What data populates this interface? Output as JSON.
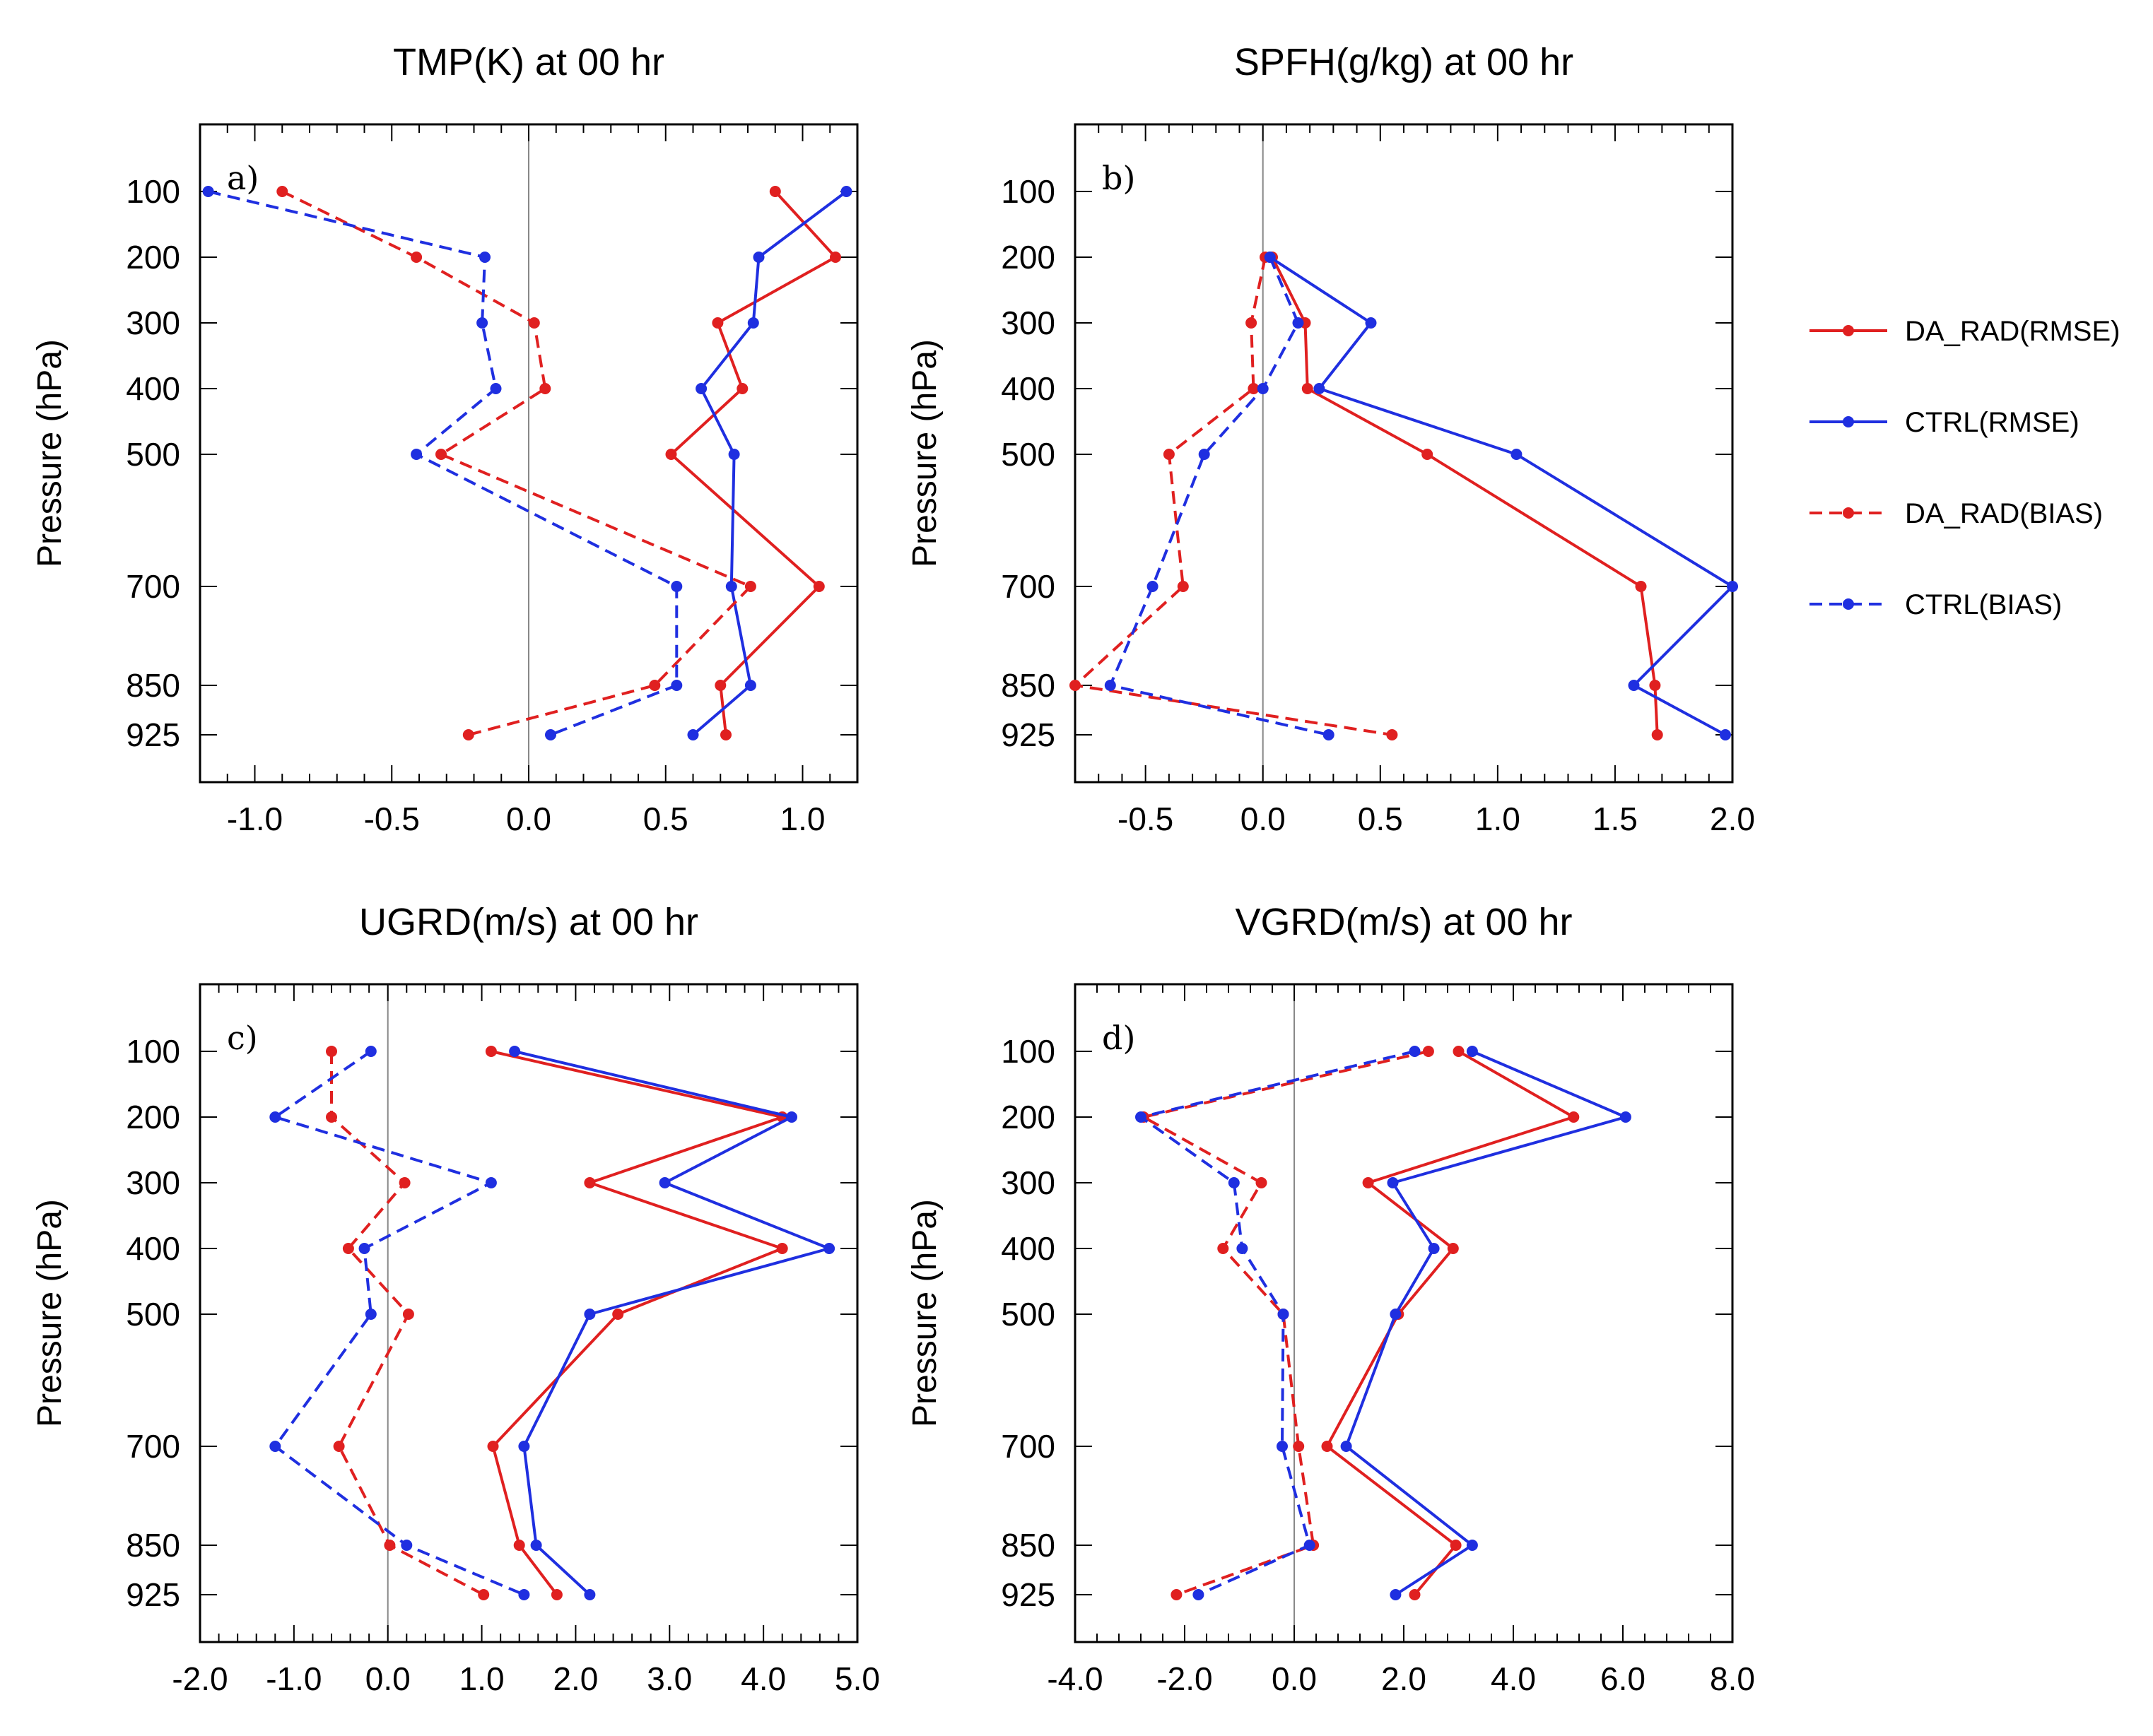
{
  "legend": {
    "entries": [
      {
        "label": "DA_RAD(RMSE)",
        "color": "#e02020",
        "style": "solid"
      },
      {
        "label": "CTRL(RMSE)",
        "color": "#1f2fe0",
        "style": "solid"
      },
      {
        "label": "DA_RAD(BIAS)",
        "color": "#e02020",
        "style": "dashed"
      },
      {
        "label": "CTRL(BIAS)",
        "color": "#1f2fe0",
        "style": "dashed"
      }
    ]
  },
  "chart_data": [
    {
      "type": "line",
      "panel_label": "a)",
      "title": "TMP(K) at 00 hr",
      "ylabel": "Pressure (hPa)",
      "xlabel": "",
      "xlim": [
        -1.2,
        1.2
      ],
      "xticks": [
        -1.0,
        -0.5,
        0.0,
        0.5,
        1.0
      ],
      "xtick_labels": [
        "-1.0",
        "-0.5",
        "0.0",
        "0.5",
        "1.0"
      ],
      "levels": [
        100,
        200,
        300,
        400,
        500,
        700,
        850,
        925
      ],
      "series": [
        {
          "name": "DA_RAD(RMSE)",
          "color": "#e02020",
          "style": "solid",
          "values": [
            0.9,
            1.12,
            0.69,
            0.78,
            0.52,
            1.06,
            0.7,
            0.72
          ]
        },
        {
          "name": "CTRL(RMSE)",
          "color": "#1f2fe0",
          "style": "solid",
          "values": [
            1.16,
            0.84,
            0.82,
            0.63,
            0.75,
            0.74,
            0.81,
            0.6
          ]
        },
        {
          "name": "DA_RAD(BIAS)",
          "color": "#e02020",
          "style": "dashed",
          "values": [
            -0.9,
            -0.41,
            0.02,
            0.06,
            -0.32,
            0.81,
            0.46,
            -0.22
          ]
        },
        {
          "name": "CTRL(BIAS)",
          "color": "#1f2fe0",
          "style": "dashed",
          "values": [
            -1.17,
            -0.16,
            -0.17,
            -0.12,
            -0.41,
            0.54,
            0.54,
            0.08
          ]
        }
      ]
    },
    {
      "type": "line",
      "panel_label": "b)",
      "title": "SPFH(g/kg) at 00 hr",
      "ylabel": "Pressure (hPa)",
      "xlabel": "",
      "xlim": [
        -0.8,
        2.0
      ],
      "xticks": [
        -0.5,
        0.0,
        0.5,
        1.0,
        1.5,
        2.0
      ],
      "xtick_labels": [
        "-0.5",
        "0.0",
        "0.5",
        "1.0",
        "1.5",
        "2.0"
      ],
      "levels": [
        200,
        300,
        400,
        500,
        700,
        850,
        925
      ],
      "series": [
        {
          "name": "DA_RAD(RMSE)",
          "color": "#e02020",
          "style": "solid",
          "values": [
            0.04,
            0.18,
            0.19,
            0.7,
            1.61,
            1.67,
            1.68
          ]
        },
        {
          "name": "CTRL(RMSE)",
          "color": "#1f2fe0",
          "style": "solid",
          "values": [
            0.03,
            0.46,
            0.24,
            1.08,
            2.0,
            1.58,
            1.97
          ]
        },
        {
          "name": "DA_RAD(BIAS)",
          "color": "#e02020",
          "style": "dashed",
          "values": [
            0.01,
            -0.05,
            -0.04,
            -0.4,
            -0.34,
            -0.8,
            0.55
          ]
        },
        {
          "name": "CTRL(BIAS)",
          "color": "#1f2fe0",
          "style": "dashed",
          "values": [
            0.03,
            0.15,
            0.0,
            -0.25,
            -0.47,
            -0.65,
            0.28
          ]
        }
      ]
    },
    {
      "type": "line",
      "panel_label": "c)",
      "title": "UGRD(m/s) at 00 hr",
      "ylabel": "Pressure (hPa)",
      "xlabel": "",
      "xlim": [
        -2.0,
        5.0
      ],
      "xticks": [
        -2.0,
        -1.0,
        0.0,
        1.0,
        2.0,
        3.0,
        4.0,
        5.0
      ],
      "xtick_labels": [
        "-2.0",
        "-1.0",
        "0.0",
        "1.0",
        "2.0",
        "3.0",
        "4.0",
        "5.0"
      ],
      "levels": [
        100,
        200,
        300,
        400,
        500,
        700,
        850,
        925
      ],
      "series": [
        {
          "name": "DA_RAD(RMSE)",
          "color": "#e02020",
          "style": "solid",
          "values": [
            1.1,
            4.2,
            2.15,
            4.2,
            2.45,
            1.12,
            1.4,
            1.8
          ]
        },
        {
          "name": "CTRL(RMSE)",
          "color": "#1f2fe0",
          "style": "solid",
          "values": [
            1.35,
            4.3,
            2.95,
            4.7,
            2.15,
            1.45,
            1.58,
            2.15
          ]
        },
        {
          "name": "DA_RAD(BIAS)",
          "color": "#e02020",
          "style": "dashed",
          "values": [
            -0.6,
            -0.6,
            0.18,
            -0.42,
            0.22,
            -0.52,
            0.02,
            1.02
          ]
        },
        {
          "name": "CTRL(BIAS)",
          "color": "#1f2fe0",
          "style": "dashed",
          "values": [
            -0.18,
            -1.2,
            1.1,
            -0.25,
            -0.18,
            -1.2,
            0.2,
            1.45
          ]
        }
      ]
    },
    {
      "type": "line",
      "panel_label": "d)",
      "title": "VGRD(m/s) at 00 hr",
      "ylabel": "Pressure (hPa)",
      "xlabel": "",
      "xlim": [
        -4.0,
        8.0
      ],
      "xticks": [
        -4.0,
        -2.0,
        0.0,
        2.0,
        4.0,
        6.0,
        8.0
      ],
      "xtick_labels": [
        "-4.0",
        "-2.0",
        "0.0",
        "2.0",
        "4.0",
        "6.0",
        "8.0"
      ],
      "levels": [
        100,
        200,
        300,
        400,
        500,
        700,
        850,
        925
      ],
      "series": [
        {
          "name": "DA_RAD(RMSE)",
          "color": "#e02020",
          "style": "solid",
          "values": [
            3.0,
            5.1,
            1.35,
            2.9,
            1.9,
            0.6,
            2.95,
            2.2
          ]
        },
        {
          "name": "CTRL(RMSE)",
          "color": "#1f2fe0",
          "style": "solid",
          "values": [
            3.25,
            6.05,
            1.8,
            2.55,
            1.85,
            0.95,
            3.25,
            1.85
          ]
        },
        {
          "name": "DA_RAD(BIAS)",
          "color": "#e02020",
          "style": "dashed",
          "values": [
            2.45,
            -2.75,
            -0.6,
            -1.3,
            -0.2,
            0.08,
            0.35,
            -2.15
          ]
        },
        {
          "name": "CTRL(BIAS)",
          "color": "#1f2fe0",
          "style": "dashed",
          "values": [
            2.2,
            -2.8,
            -1.1,
            -0.95,
            -0.2,
            -0.22,
            0.28,
            -1.75
          ]
        }
      ]
    }
  ]
}
